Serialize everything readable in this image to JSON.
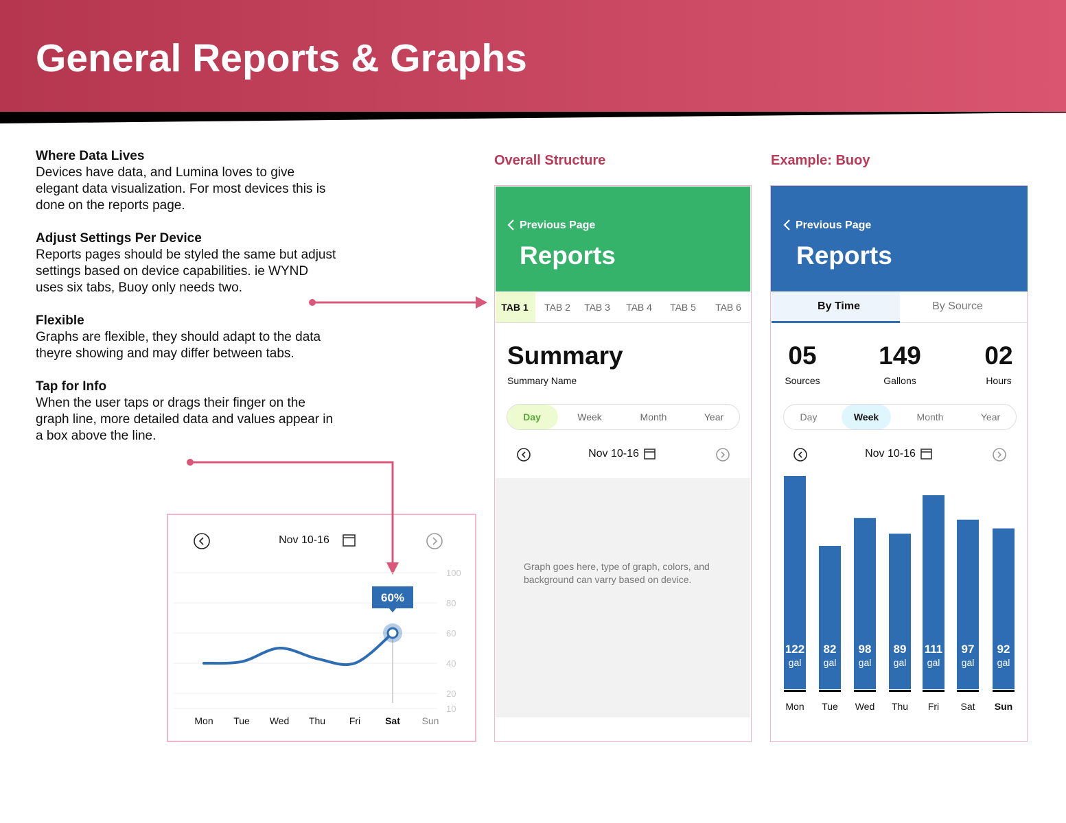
{
  "header": {
    "title": "General Reports & Graphs"
  },
  "intro": {
    "sections": [
      {
        "heading": "Where Data Lives",
        "lines": [
          "Devices have data, and Lumina loves to give",
          "elegant data visualization. For most devices this is",
          "done on the reports page."
        ]
      },
      {
        "heading": "Adjust Settings Per Device",
        "lines": [
          "Reports pages should be styled the same but adjust",
          "settings based on device capabilities. ie WYND",
          "uses six tabs, Buoy only needs two."
        ]
      },
      {
        "heading": "Flexible",
        "lines": [
          "Graphs are flexible, they should adapt to the data",
          "theyre showing and may differ between tabs."
        ]
      },
      {
        "heading": "Tap for Info",
        "lines": [
          "When the user taps or drags their finger on the",
          "graph line, more detailed data and values appear in",
          "a box above the line."
        ]
      }
    ]
  },
  "structure_panel": {
    "label": "Overall Structure",
    "back": "Previous Page",
    "title": "Reports",
    "tabs": [
      "TAB 1",
      "TAB 2",
      "TAB 3",
      "TAB 4",
      "TAB 5",
      "TAB 6"
    ],
    "summary_title": "Summary",
    "summary_name": "Summary Name",
    "periods": [
      "Day",
      "Week",
      "Month",
      "Year"
    ],
    "date": "Nov 10-16",
    "placeholder": [
      "Graph goes here, type of graph, colors, and",
      "background can varry based on device."
    ]
  },
  "buoy_panel": {
    "label": "Example: Buoy",
    "back": "Previous Page",
    "title": "Reports",
    "tabs": [
      "By Time",
      "By Source"
    ],
    "stats": [
      {
        "value": "05",
        "label": "Sources"
      },
      {
        "value": "149",
        "label": "Gallons"
      },
      {
        "value": "02",
        "label": "Hours"
      }
    ],
    "periods": [
      "Day",
      "Week",
      "Month",
      "Year"
    ],
    "date": "Nov 10-16",
    "chart": {
      "type": "bar",
      "categories": [
        "Mon",
        "Tue",
        "Wed",
        "Thu",
        "Fri",
        "Sat",
        "Sun"
      ],
      "values": [
        122,
        82,
        98,
        89,
        111,
        97,
        92
      ],
      "unit": "gal",
      "color": "#2f6db3"
    }
  },
  "line_chart": {
    "type": "line",
    "date": "Nov 10-16",
    "categories": [
      "Mon",
      "Tue",
      "Wed",
      "Thu",
      "Fri",
      "Sat",
      "Sun"
    ],
    "values": [
      40,
      41,
      50,
      43,
      40,
      60,
      null
    ],
    "value_labels": [
      null,
      null,
      null,
      null,
      null,
      "60%",
      null
    ],
    "ylim": [
      10,
      100
    ],
    "yticks": [
      100,
      80,
      60,
      40,
      20,
      10
    ],
    "color": "#2f6db3",
    "grid": true
  }
}
